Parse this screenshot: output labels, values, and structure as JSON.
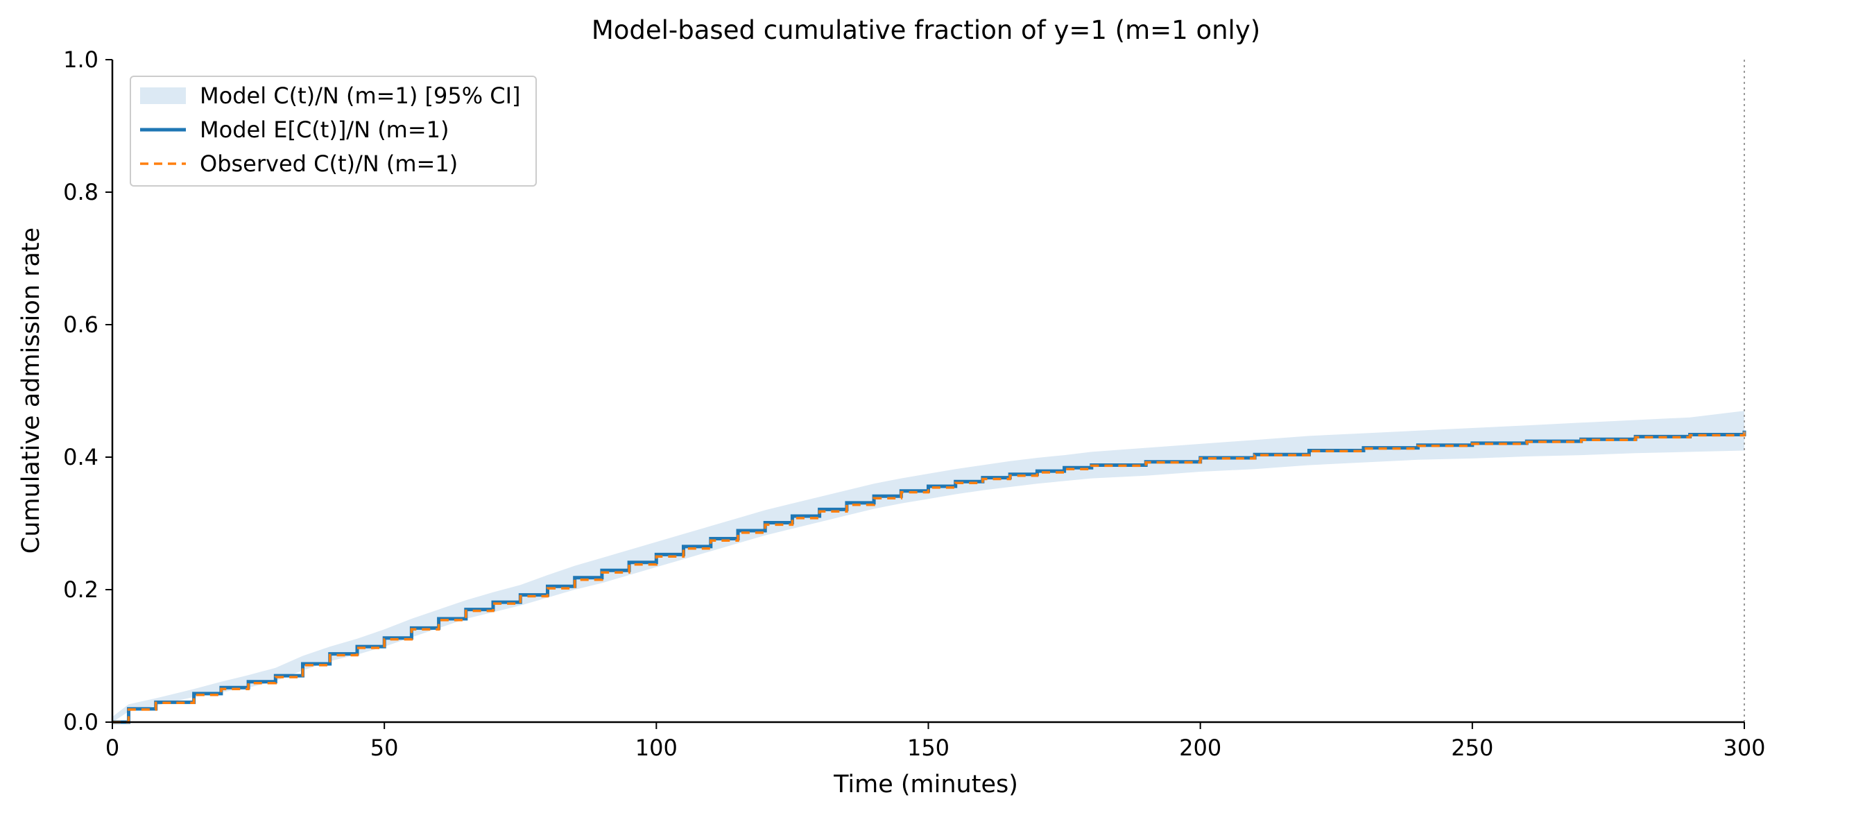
{
  "chart_data": {
    "type": "line",
    "title": "Model-based cumulative fraction of y=1 (m=1 only)",
    "xlabel": "Time (minutes)",
    "ylabel": "Cumulative admission rate",
    "xlim": [
      0,
      300
    ],
    "ylim": [
      0,
      1.0
    ],
    "x_ticks": [
      "0",
      "50",
      "100",
      "150",
      "200",
      "250",
      "300"
    ],
    "y_ticks": [
      "0.0",
      "0.2",
      "0.4",
      "0.6",
      "0.8",
      "1.0"
    ],
    "grid": false,
    "legend_position": "upper-left",
    "reference_line": {
      "x": 300,
      "style": "dotted",
      "color": "#999999"
    },
    "x": [
      0,
      3,
      8,
      15,
      20,
      25,
      30,
      35,
      40,
      45,
      50,
      55,
      60,
      65,
      70,
      75,
      80,
      85,
      90,
      95,
      100,
      105,
      110,
      115,
      120,
      125,
      130,
      135,
      140,
      145,
      150,
      155,
      160,
      165,
      170,
      175,
      180,
      190,
      200,
      210,
      220,
      230,
      240,
      250,
      260,
      270,
      280,
      290,
      300
    ],
    "series": [
      {
        "name": "Model C(t)/N (m=1) [95% CI]",
        "kind": "band",
        "color": "#dce9f4",
        "lower": [
          0,
          0.016,
          0.025,
          0.038,
          0.045,
          0.052,
          0.062,
          0.078,
          0.092,
          0.102,
          0.114,
          0.128,
          0.142,
          0.156,
          0.166,
          0.176,
          0.188,
          0.2,
          0.21,
          0.222,
          0.234,
          0.246,
          0.258,
          0.27,
          0.282,
          0.292,
          0.302,
          0.312,
          0.322,
          0.33,
          0.337,
          0.344,
          0.35,
          0.355,
          0.36,
          0.364,
          0.368,
          0.372,
          0.378,
          0.382,
          0.388,
          0.392,
          0.396,
          0.398,
          0.401,
          0.403,
          0.406,
          0.408,
          0.41
        ],
        "upper": [
          0.008,
          0.027,
          0.036,
          0.05,
          0.061,
          0.071,
          0.082,
          0.1,
          0.114,
          0.126,
          0.14,
          0.156,
          0.17,
          0.184,
          0.196,
          0.207,
          0.222,
          0.236,
          0.248,
          0.26,
          0.272,
          0.284,
          0.296,
          0.308,
          0.32,
          0.33,
          0.34,
          0.35,
          0.36,
          0.368,
          0.375,
          0.382,
          0.388,
          0.394,
          0.399,
          0.403,
          0.408,
          0.414,
          0.42,
          0.426,
          0.432,
          0.436,
          0.44,
          0.444,
          0.448,
          0.452,
          0.456,
          0.46,
          0.47
        ]
      },
      {
        "name": "Model E[C(t)]/N (m=1)",
        "kind": "line",
        "color": "#1f77b4",
        "values": [
          0,
          0.02,
          0.03,
          0.043,
          0.052,
          0.061,
          0.07,
          0.088,
          0.103,
          0.114,
          0.127,
          0.142,
          0.156,
          0.17,
          0.181,
          0.192,
          0.205,
          0.218,
          0.229,
          0.241,
          0.253,
          0.265,
          0.277,
          0.289,
          0.301,
          0.311,
          0.321,
          0.331,
          0.341,
          0.349,
          0.356,
          0.363,
          0.369,
          0.374,
          0.379,
          0.384,
          0.388,
          0.393,
          0.399,
          0.404,
          0.41,
          0.414,
          0.418,
          0.421,
          0.424,
          0.427,
          0.431,
          0.434,
          0.44
        ]
      },
      {
        "name": "Observed C(t)/N (m=1)",
        "kind": "line",
        "dash": "dashed",
        "color": "#ff7f0e",
        "values": [
          0,
          0.019,
          0.029,
          0.041,
          0.05,
          0.059,
          0.068,
          0.086,
          0.101,
          0.112,
          0.125,
          0.14,
          0.154,
          0.168,
          0.179,
          0.19,
          0.202,
          0.215,
          0.226,
          0.238,
          0.25,
          0.262,
          0.274,
          0.286,
          0.298,
          0.308,
          0.318,
          0.328,
          0.338,
          0.347,
          0.354,
          0.361,
          0.367,
          0.372,
          0.377,
          0.382,
          0.387,
          0.392,
          0.398,
          0.403,
          0.409,
          0.413,
          0.417,
          0.42,
          0.423,
          0.426,
          0.43,
          0.433,
          0.44
        ]
      }
    ]
  }
}
